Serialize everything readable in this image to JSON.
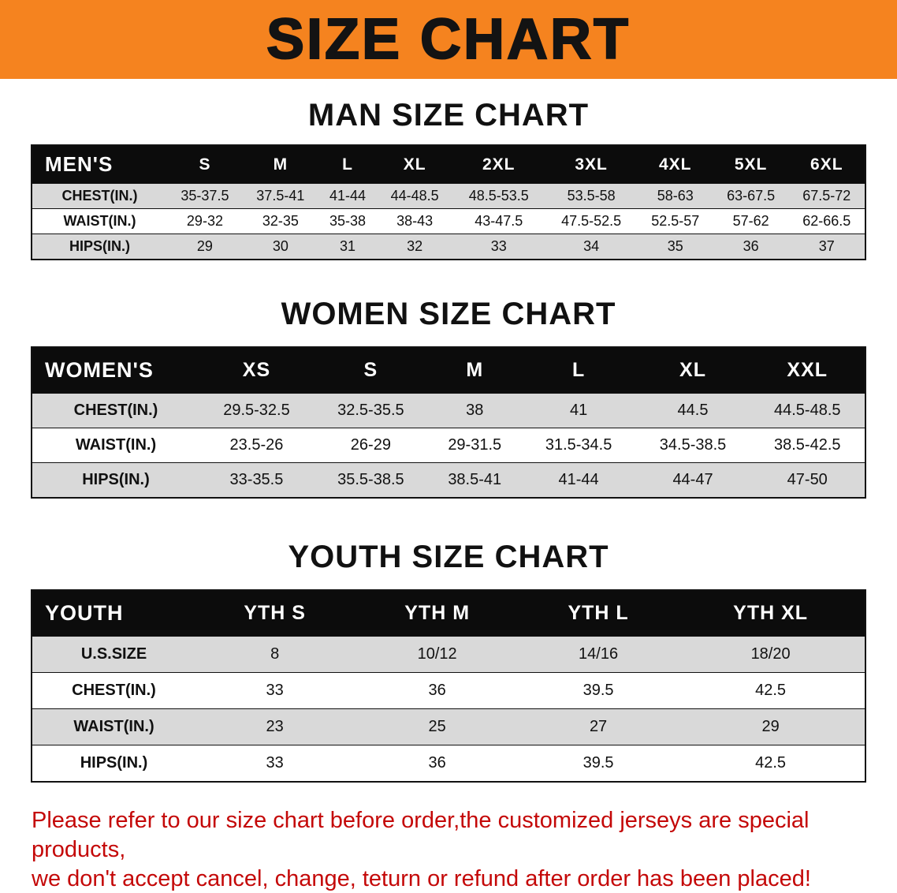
{
  "banner": {
    "title": "SIZE CHART",
    "bg_color": "#f5831f"
  },
  "men": {
    "heading": "MAN SIZE CHART",
    "label": "MEN'S",
    "columns": [
      "S",
      "M",
      "L",
      "XL",
      "2XL",
      "3XL",
      "4XL",
      "5XL",
      "6XL"
    ],
    "rows": [
      {
        "label": "CHEST(IN.)",
        "values": [
          "35-37.5",
          "37.5-41",
          "41-44",
          "44-48.5",
          "48.5-53.5",
          "53.5-58",
          "58-63",
          "63-67.5",
          "67.5-72"
        ]
      },
      {
        "label": "WAIST(IN.)",
        "values": [
          "29-32",
          "32-35",
          "35-38",
          "38-43",
          "43-47.5",
          "47.5-52.5",
          "52.5-57",
          "57-62",
          "62-66.5"
        ]
      },
      {
        "label": "HIPS(IN.)",
        "values": [
          "29",
          "30",
          "31",
          "32",
          "33",
          "34",
          "35",
          "36",
          "37"
        ]
      }
    ]
  },
  "women": {
    "heading": "WOMEN SIZE CHART",
    "label": "WOMEN'S",
    "columns": [
      "XS",
      "S",
      "M",
      "L",
      "XL",
      "XXL"
    ],
    "rows": [
      {
        "label": "CHEST(IN.)",
        "values": [
          "29.5-32.5",
          "32.5-35.5",
          "38",
          "41",
          "44.5",
          "44.5-48.5"
        ]
      },
      {
        "label": "WAIST(IN.)",
        "values": [
          "23.5-26",
          "26-29",
          "29-31.5",
          "31.5-34.5",
          "34.5-38.5",
          "38.5-42.5"
        ]
      },
      {
        "label": "HIPS(IN.)",
        "values": [
          "33-35.5",
          "35.5-38.5",
          "38.5-41",
          "41-44",
          "44-47",
          "47-50"
        ]
      }
    ]
  },
  "youth": {
    "heading": "YOUTH SIZE CHART",
    "label": "YOUTH",
    "columns": [
      "YTH S",
      "YTH M",
      "YTH L",
      "YTH XL"
    ],
    "rows": [
      {
        "label": "U.S.SIZE",
        "values": [
          "8",
          "10/12",
          "14/16",
          "18/20"
        ]
      },
      {
        "label": "CHEST(IN.)",
        "values": [
          "33",
          "36",
          "39.5",
          "42.5"
        ]
      },
      {
        "label": "WAIST(IN.)",
        "values": [
          "23",
          "25",
          "27",
          "29"
        ]
      },
      {
        "label": "HIPS(IN.)",
        "values": [
          "33",
          "36",
          "39.5",
          "42.5"
        ]
      }
    ]
  },
  "disclaimer": {
    "line1": "Please refer to our size chart before order,the customized jerseys are special products,",
    "line2": "we don't accept cancel, change, teturn or refund after order has been placed!"
  }
}
